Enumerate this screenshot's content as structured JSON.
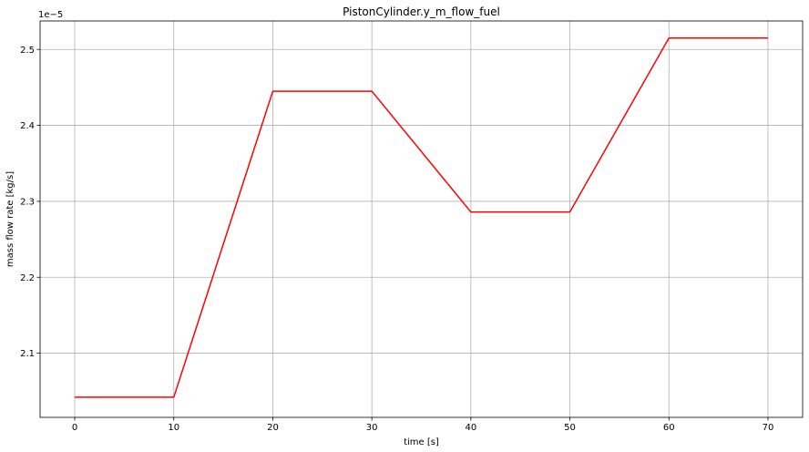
{
  "chart_data": {
    "type": "line",
    "title": "PistonCylinder.y_m_flow_fuel",
    "xlabel": "time [s]",
    "ylabel": "mass flow rate [kg/s]",
    "y_offset_label": "1e−5",
    "xlim": [
      -3.5,
      73.5
    ],
    "ylim": [
      2.0155,
      2.5375
    ],
    "x_ticks": [
      0,
      10,
      20,
      30,
      40,
      50,
      60,
      70
    ],
    "x_tick_labels": [
      "0",
      "10",
      "20",
      "30",
      "40",
      "50",
      "60",
      "70"
    ],
    "y_ticks": [
      2.1,
      2.2,
      2.3,
      2.4,
      2.5
    ],
    "y_tick_labels": [
      "2.1",
      "2.2",
      "2.3",
      "2.4",
      "2.5"
    ],
    "grid": true,
    "series": [
      {
        "color": "#ff0000",
        "x": [
          0,
          10,
          20,
          30,
          40,
          50,
          60,
          70
        ],
        "y": [
          2.042,
          2.042,
          2.445,
          2.445,
          2.286,
          2.286,
          2.515,
          2.515
        ]
      }
    ]
  }
}
